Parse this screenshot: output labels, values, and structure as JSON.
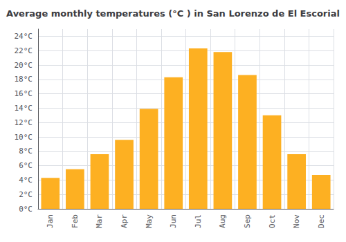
{
  "chart_data": {
    "type": "bar",
    "title": "Average monthly temperatures (°C ) in San Lorenzo de El Escorial",
    "categories": [
      "Jan",
      "Feb",
      "Mar",
      "Apr",
      "May",
      "Jun",
      "Jul",
      "Aug",
      "Sep",
      "Oct",
      "Nov",
      "Dec"
    ],
    "values": [
      4.3,
      5.5,
      7.6,
      9.6,
      13.9,
      18.3,
      22.3,
      21.8,
      18.6,
      13.0,
      7.6,
      4.7
    ],
    "color": "#FDB022",
    "ylim": [
      0,
      25
    ],
    "yticks": [
      {
        "value": 0,
        "label": "0°C"
      },
      {
        "value": 2,
        "label": "2°C"
      },
      {
        "value": 4,
        "label": "4°C"
      },
      {
        "value": 6,
        "label": "6°C"
      },
      {
        "value": 8,
        "label": "8°C"
      },
      {
        "value": 10,
        "label": "10°C"
      },
      {
        "value": 12,
        "label": "12°C"
      },
      {
        "value": 14,
        "label": "14°C"
      },
      {
        "value": 16,
        "label": "16°C"
      },
      {
        "value": 18,
        "label": "18°C"
      },
      {
        "value": 20,
        "label": "20°C"
      },
      {
        "value": 22,
        "label": "22°C"
      },
      {
        "value": 24,
        "label": "24°C"
      }
    ],
    "grid": true
  }
}
